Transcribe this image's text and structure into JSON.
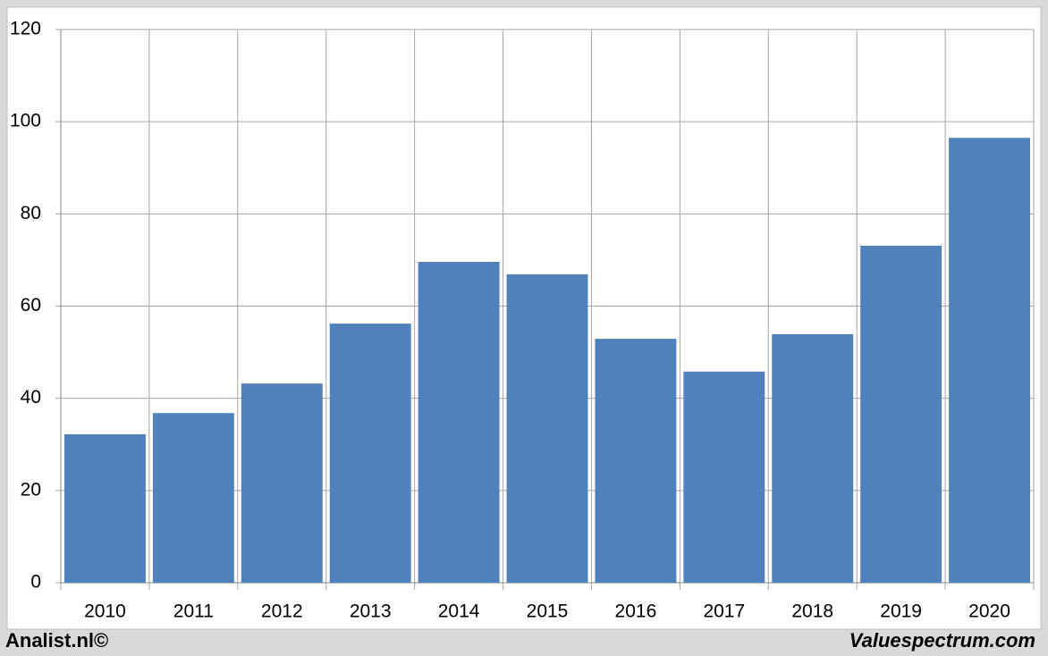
{
  "chart_data": {
    "type": "bar",
    "categories": [
      "2010",
      "2011",
      "2012",
      "2013",
      "2014",
      "2015",
      "2016",
      "2017",
      "2018",
      "2019",
      "2020"
    ],
    "values": [
      32.2,
      36.8,
      43.2,
      56.2,
      69.6,
      66.9,
      52.9,
      45.8,
      53.9,
      73.1,
      96.5
    ],
    "color": "#4f81bd",
    "ylim": [
      0,
      120
    ],
    "yticks": [
      0,
      20,
      40,
      60,
      80,
      100,
      120
    ],
    "grid": true,
    "footer_left": "Analist.nl©",
    "footer_right": "Valuespectrum.com"
  }
}
